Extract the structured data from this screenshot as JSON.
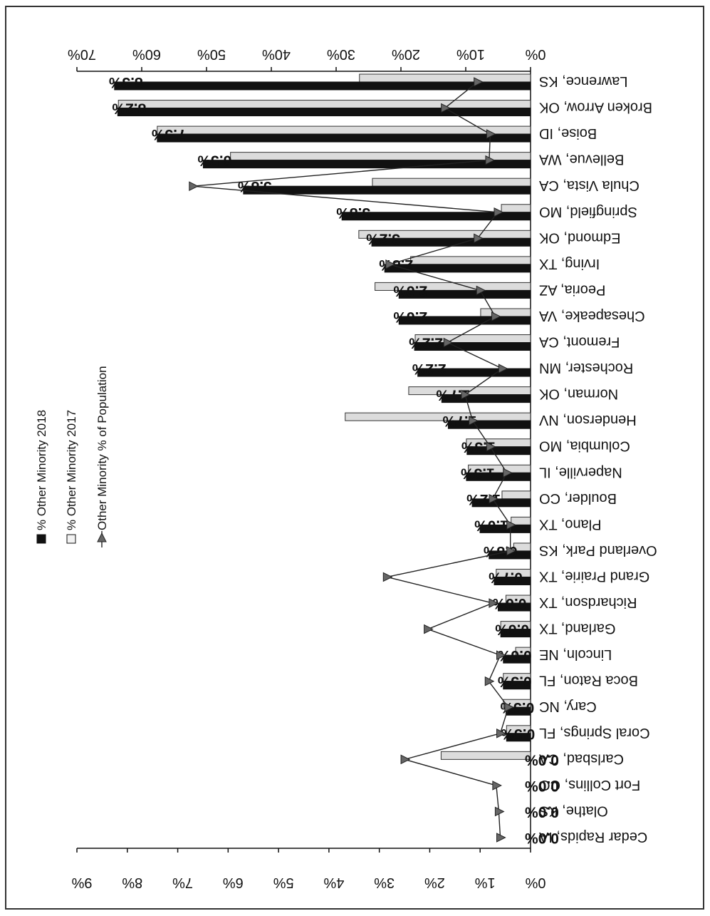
{
  "chart_data": {
    "type": "bar",
    "orientation": "horizontal",
    "rotation": "Figure is rotated 90 degrees (reads top-to-bottom)",
    "categories": [
      "Cedar Rapids, IA",
      "Olathe, KS",
      "Fort Collins, CO",
      "Carlsbad, CA",
      "Coral Springs, FL",
      "Cary, NC",
      "Boca Raton, FL",
      "Lincoln, NE",
      "Garland, TX",
      "Richardson, TX",
      "Grand Prairie, TX",
      "Overland Park, KS",
      "Plano, TX",
      "Boulder, CO",
      "Naperville, IL",
      "Columbia, MO",
      "Henderson, NV",
      "Norman, OK",
      "Rochester, MN",
      "Fremont, CA",
      "Chesapeake, VA",
      "Peoria, AZ",
      "Irving, TX",
      "Edmond, OK",
      "Springfield, MO",
      "Chula Vista, CA",
      "Bellevue, WA",
      "Boise, ID",
      "Broken Arrow, OK",
      "Lawrence, KS"
    ],
    "series": [
      {
        "name": "% Other Minority 2018",
        "axis": "primary",
        "color": "#111111",
        "values": [
          0,
          0,
          0,
          0,
          3.7,
          3.8,
          4.2,
          4.2,
          4.6,
          5.0,
          5.6,
          6.4,
          7.8,
          9.0,
          9.9,
          9.8,
          12.7,
          13.7,
          17.4,
          17.9,
          20.3,
          20.3,
          22.5,
          24.5,
          29.1,
          44.3,
          50.5,
          57.6,
          63.7,
          64.2
        ]
      },
      {
        "name": "% Other Minority 2017",
        "axis": "primary",
        "color": "#dcdcdc",
        "values": [
          0,
          0,
          0,
          13.8,
          3.7,
          4.2,
          4.2,
          2.3,
          4.6,
          3.8,
          5.3,
          2.6,
          3.0,
          4.4,
          9.6,
          9.9,
          28.6,
          18.8,
          0,
          17.8,
          7.7,
          24.0,
          18.5,
          26.5,
          4.5,
          24.4,
          46.3,
          57.6,
          63.6,
          26.4
        ]
      },
      {
        "name": "Other Minority % of Population",
        "axis": "secondary",
        "type": "line",
        "marker": "triangle",
        "values": [
          0.6,
          0.63,
          0.68,
          2.5,
          0.6,
          0.44,
          0.83,
          0.6,
          2.04,
          0.75,
          2.85,
          0.4,
          0.4,
          0.75,
          0.47,
          0.8,
          1.15,
          1.3,
          0.56,
          1.65,
          0.7,
          1.0,
          2.8,
          1.05,
          0.65,
          6.7,
          0.82,
          0.8,
          1.7,
          1.05
        ]
      }
    ],
    "data_labels": [
      "0.0%",
      "0.0%",
      "0.0%",
      "0.0%",
      "0.5%",
      "0.5%",
      "0.5%",
      "0.6%",
      "0.6%",
      "0.6%",
      "0.7%",
      "0.8%",
      "1.0%",
      "1.2%",
      "1.3%",
      "1.3%",
      "1.7%",
      "1.7%",
      "2.2%",
      "2.2%",
      "2.6%",
      "2.6%",
      "2.8%",
      "3.2%",
      "3.8%",
      "5.8%",
      "6.5%",
      "7.5%",
      "8.2%",
      "8.3%"
    ],
    "primary_axis": {
      "min": 0,
      "max": 70,
      "step": 10,
      "tick_labels": [
        "0%",
        "10%",
        "20%",
        "30%",
        "40%",
        "50%",
        "60%",
        "70%"
      ]
    },
    "secondary_axis": {
      "min": 0,
      "max": 9,
      "step": 1,
      "tick_labels": [
        "0%",
        "1%",
        "2%",
        "3%",
        "4%",
        "5%",
        "6%",
        "7%",
        "8%",
        "9%"
      ]
    },
    "legend": {
      "placement": "upper-left (rotated)",
      "entries": [
        "% Other Minority 2018",
        "% Other Minority 2017",
        "Other Minority % of Population"
      ]
    },
    "grid": false,
    "title": "",
    "xlabel": "",
    "ylabel": ""
  }
}
